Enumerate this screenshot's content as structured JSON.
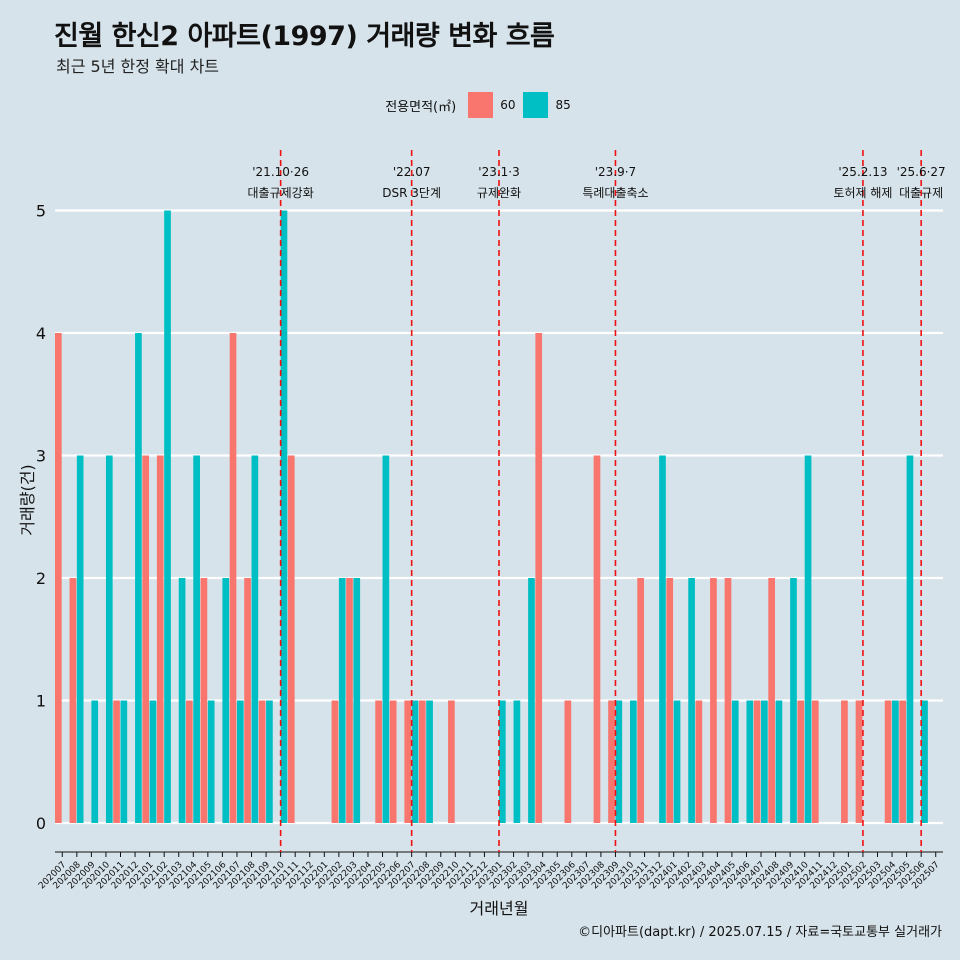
{
  "title": "진월 한신2 아파트(1997) 거래량 변화 흐름",
  "subtitle": "최근 5년 한정 확대 차트",
  "caption": "©디아파트(dapt.kr) / 2025.07.15 / 자료=국토교통부 실거래가",
  "legend": {
    "title": "전용면적(㎡)",
    "items": [
      {
        "label": "60",
        "color": "#f8766d"
      },
      {
        "label": "85",
        "color": "#00bfc4"
      }
    ]
  },
  "chart_data": {
    "type": "bar",
    "title": "진월 한신2 아파트(1997) 거래량 변화 흐름",
    "xlabel": "거래년월",
    "ylabel": "거래량(건)",
    "ylim": [
      0,
      5
    ],
    "yticks": [
      0,
      1,
      2,
      3,
      4,
      5
    ],
    "categories": [
      "202007",
      "202008",
      "202009",
      "202010",
      "202011",
      "202012",
      "202101",
      "202102",
      "202103",
      "202104",
      "202105",
      "202106",
      "202107",
      "202108",
      "202109",
      "202110",
      "202111",
      "202112",
      "202201",
      "202202",
      "202203",
      "202204",
      "202205",
      "202206",
      "202207",
      "202208",
      "202209",
      "202210",
      "202211",
      "202212",
      "202301",
      "202302",
      "202303",
      "202304",
      "202305",
      "202306",
      "202307",
      "202308",
      "202309",
      "202310",
      "202311",
      "202312",
      "202401",
      "202402",
      "202403",
      "202404",
      "202405",
      "202406",
      "202407",
      "202408",
      "202409",
      "202410",
      "202411",
      "202412",
      "202501",
      "202502",
      "202503",
      "202504",
      "202505",
      "202506",
      "202507"
    ],
    "series": [
      {
        "name": "60",
        "color": "#f8766d",
        "values": [
          4,
          2,
          0,
          0,
          1,
          0,
          3,
          3,
          0,
          1,
          2,
          0,
          4,
          2,
          1,
          0,
          3,
          0,
          0,
          1,
          2,
          0,
          1,
          1,
          1,
          1,
          0,
          1,
          0,
          0,
          0,
          0,
          0,
          4,
          0,
          1,
          0,
          3,
          1,
          0,
          2,
          0,
          2,
          0,
          1,
          2,
          2,
          0,
          1,
          2,
          0,
          1,
          1,
          0,
          1,
          1,
          0,
          1,
          1,
          0,
          0
        ]
      },
      {
        "name": "85",
        "color": "#00bfc4",
        "values": [
          0,
          3,
          1,
          3,
          1,
          4,
          1,
          5,
          2,
          3,
          1,
          2,
          1,
          3,
          1,
          5,
          0,
          0,
          0,
          2,
          2,
          0,
          3,
          0,
          1,
          1,
          0,
          0,
          0,
          0,
          1,
          1,
          2,
          0,
          0,
          0,
          0,
          0,
          1,
          1,
          0,
          3,
          1,
          2,
          0,
          0,
          1,
          1,
          1,
          1,
          2,
          3,
          0,
          0,
          0,
          0,
          0,
          1,
          3,
          1,
          0
        ]
      }
    ],
    "annotations": [
      {
        "index": 15,
        "date": "'21.10·26",
        "label": "대출규제강화"
      },
      {
        "index": 24,
        "date": "'22.07",
        "label": "DSR 3단계"
      },
      {
        "index": 30,
        "date": "'23.1·3",
        "label": "규제완화"
      },
      {
        "index": 38,
        "date": "'23.9·7",
        "label": "특례대출축소"
      },
      {
        "index": 55,
        "date": "'25.2.13",
        "label": "토허제 해제"
      },
      {
        "index": 59,
        "date": "'25.6·27",
        "label": "대출규제"
      }
    ]
  }
}
